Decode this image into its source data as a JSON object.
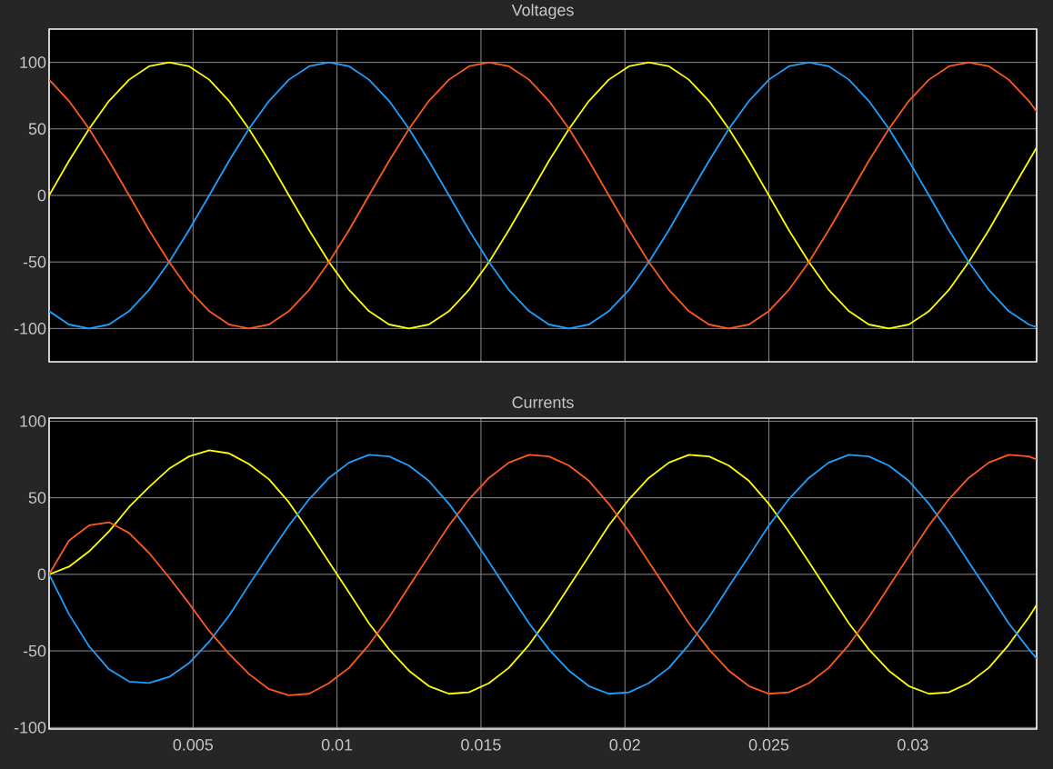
{
  "chart_data": [
    {
      "type": "line",
      "title": "Voltages",
      "xlim": [
        0,
        0.0343
      ],
      "ylim": [
        -125,
        125
      ],
      "xticks": [
        0.005,
        0.01,
        0.015,
        0.02,
        0.025,
        0.03
      ],
      "yticks": [
        -100,
        -50,
        0,
        50,
        100
      ],
      "grid": true,
      "tick_labels": "y",
      "x": [
        0,
        0.00069,
        0.00139,
        0.00208,
        0.00278,
        0.00347,
        0.00417,
        0.00486,
        0.00556,
        0.00625,
        0.00694,
        0.00764,
        0.00833,
        0.00903,
        0.00972,
        0.01042,
        0.01111,
        0.01181,
        0.0125,
        0.01319,
        0.01389,
        0.01458,
        0.01528,
        0.01597,
        0.01667,
        0.01736,
        0.01806,
        0.01875,
        0.01944,
        0.02014,
        0.02083,
        0.02153,
        0.02222,
        0.02292,
        0.02361,
        0.02431,
        0.025,
        0.02569,
        0.02639,
        0.02708,
        0.02778,
        0.02847,
        0.02917,
        0.02986,
        0.03056,
        0.03125,
        0.03194,
        0.03264,
        0.03333,
        0.03403,
        0.0343
      ],
      "series": [
        {
          "color": "#ffff00",
          "values": [
            0,
            26,
            50,
            71,
            87,
            97,
            100,
            97,
            87,
            71,
            50,
            26,
            0,
            -26,
            -50,
            -71,
            -87,
            -97,
            -100,
            -97,
            -87,
            -71,
            -50,
            -26,
            0,
            26,
            50,
            71,
            87,
            97,
            100,
            97,
            87,
            71,
            50,
            26,
            0,
            -26,
            -50,
            -71,
            -87,
            -97,
            -100,
            -97,
            -87,
            -71,
            -50,
            -26,
            0,
            26,
            36
          ]
        },
        {
          "color": "#1ea0ff",
          "values": [
            -87,
            -97,
            -100,
            -97,
            -87,
            -71,
            -50,
            -26,
            0,
            26,
            50,
            71,
            87,
            97,
            100,
            97,
            87,
            71,
            50,
            26,
            0,
            -26,
            -50,
            -71,
            -87,
            -97,
            -100,
            -97,
            -87,
            -71,
            -50,
            -26,
            0,
            26,
            50,
            71,
            87,
            97,
            100,
            97,
            87,
            71,
            50,
            26,
            0,
            -26,
            -50,
            -71,
            -87,
            -97,
            -99
          ]
        },
        {
          "color": "#ff5a1e",
          "values": [
            87,
            71,
            50,
            26,
            0,
            -26,
            -50,
            -71,
            -87,
            -97,
            -100,
            -97,
            -87,
            -71,
            -50,
            -26,
            0,
            26,
            50,
            71,
            87,
            97,
            100,
            97,
            87,
            71,
            50,
            26,
            0,
            -26,
            -50,
            -71,
            -87,
            -97,
            -100,
            -97,
            -87,
            -71,
            -50,
            -26,
            0,
            26,
            50,
            71,
            87,
            97,
            100,
            97,
            87,
            71,
            63
          ]
        }
      ]
    },
    {
      "type": "line",
      "title": "Currents",
      "xlim": [
        0,
        0.0343
      ],
      "ylim": [
        -101,
        102
      ],
      "xticks": [
        0.005,
        0.01,
        0.015,
        0.02,
        0.025,
        0.03
      ],
      "yticks": [
        -100,
        -50,
        0,
        50,
        100
      ],
      "grid": true,
      "x": [
        0,
        0.00069,
        0.00139,
        0.00208,
        0.00278,
        0.00347,
        0.00417,
        0.00486,
        0.00556,
        0.00625,
        0.00694,
        0.00764,
        0.00833,
        0.00903,
        0.00972,
        0.01042,
        0.01111,
        0.01181,
        0.0125,
        0.01319,
        0.01389,
        0.01458,
        0.01528,
        0.01597,
        0.01667,
        0.01736,
        0.01806,
        0.01875,
        0.01944,
        0.02014,
        0.02083,
        0.02153,
        0.02222,
        0.02292,
        0.02361,
        0.02431,
        0.025,
        0.02569,
        0.02639,
        0.02708,
        0.02778,
        0.02847,
        0.02917,
        0.02986,
        0.03056,
        0.03125,
        0.03194,
        0.03264,
        0.03333,
        0.03403,
        0.0343
      ],
      "series": [
        {
          "color": "#ffff00",
          "values": [
            0,
            5,
            15,
            28,
            44,
            57,
            69,
            77,
            81,
            79,
            72,
            62,
            47,
            28,
            8,
            -12,
            -32,
            -49,
            -63,
            -73,
            -78,
            -77,
            -71,
            -61,
            -46,
            -28,
            -8,
            12,
            32,
            49,
            63,
            73,
            78,
            77,
            71,
            61,
            46,
            28,
            8,
            -12,
            -32,
            -49,
            -63,
            -73,
            -78,
            -77,
            -71,
            -61,
            -46,
            -28,
            -20
          ]
        },
        {
          "color": "#1ea0ff",
          "values": [
            0,
            -26,
            -47,
            -62,
            -70,
            -71,
            -67,
            -58,
            -44,
            -27,
            -7,
            13,
            32,
            49,
            63,
            73,
            78,
            77,
            71,
            61,
            46,
            28,
            8,
            -12,
            -32,
            -49,
            -63,
            -73,
            -78,
            -77,
            -71,
            -61,
            -46,
            -28,
            -8,
            12,
            32,
            49,
            63,
            73,
            78,
            77,
            71,
            61,
            46,
            28,
            8,
            -12,
            -32,
            -49,
            -55
          ]
        },
        {
          "color": "#ff5a1e",
          "values": [
            0,
            22,
            32,
            34,
            27,
            14,
            -2,
            -19,
            -37,
            -52,
            -65,
            -75,
            -79,
            -78,
            -71,
            -61,
            -46,
            -28,
            -8,
            12,
            32,
            49,
            63,
            73,
            78,
            77,
            71,
            61,
            46,
            28,
            8,
            -12,
            -32,
            -49,
            -63,
            -73,
            -78,
            -77,
            -71,
            -61,
            -46,
            -28,
            -8,
            12,
            32,
            49,
            63,
            73,
            78,
            77,
            75
          ]
        }
      ]
    }
  ]
}
